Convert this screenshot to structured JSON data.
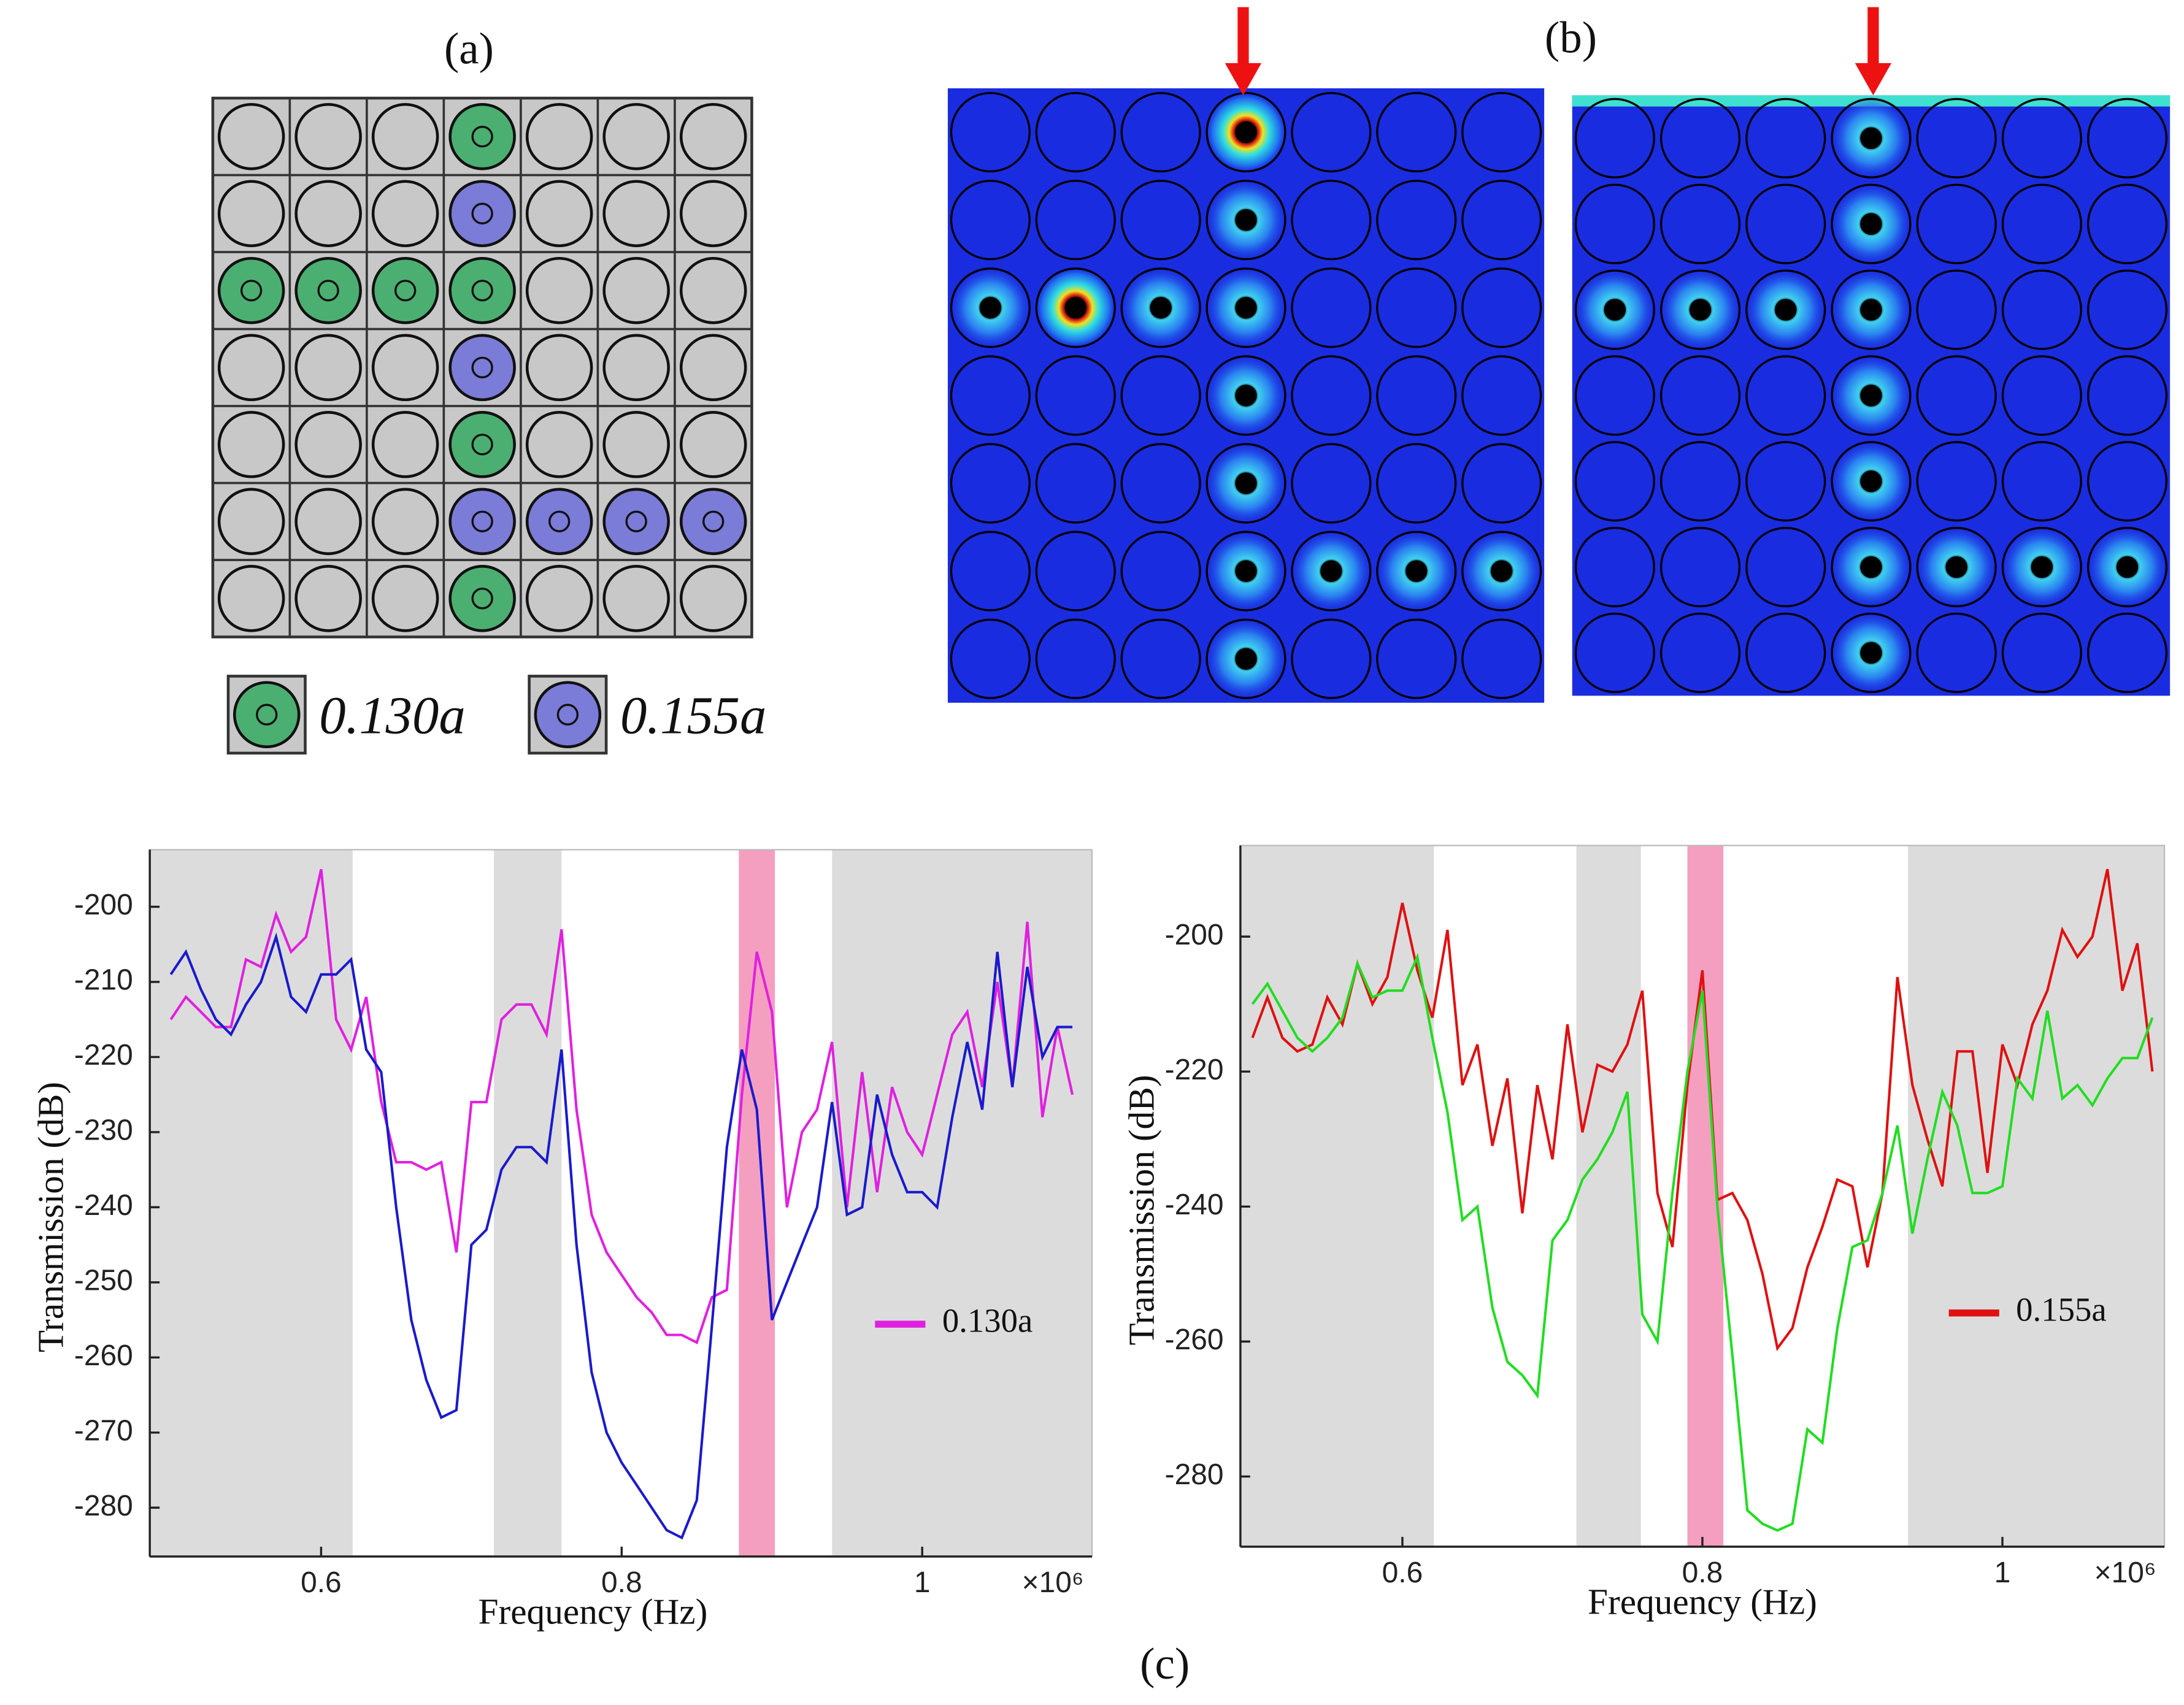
{
  "panel_labels": {
    "a": "(a)",
    "b": "(b)",
    "c": "(c)"
  },
  "material_legend": [
    {
      "label": "0.130a",
      "color": "#4caf72"
    },
    {
      "label": "0.155a",
      "color": "#7b7bd8"
    }
  ],
  "chart_data": [
    {
      "type": "line",
      "x_label": "Frequency (Hz)",
      "y_label": "Transmission (dB)",
      "x_multiplier": "×10⁶",
      "xlim": [
        0.486,
        1.113
      ],
      "xticks": [
        0.6,
        0.8,
        1
      ],
      "ylim": [
        -286.5,
        -192.4
      ],
      "yticks": [
        -280,
        -270,
        -260,
        -250,
        -240,
        -230,
        -220,
        -210,
        -200
      ],
      "shaded_regions": [
        {
          "xlim": [
            0.486,
            0.621
          ],
          "color": "#dcdcdc"
        },
        {
          "xlim": [
            0.715,
            0.76
          ],
          "color": "#dcdcdc"
        },
        {
          "xlim": [
            0.878,
            0.902
          ],
          "color": "#f59fc0"
        },
        {
          "xlim": [
            0.94,
            1.113
          ],
          "color": "#dcdcdc"
        }
      ],
      "x": [
        0.5,
        0.51,
        0.52,
        0.53,
        0.54,
        0.55,
        0.56,
        0.57,
        0.58,
        0.59,
        0.6,
        0.61,
        0.62,
        0.63,
        0.64,
        0.65,
        0.66,
        0.67,
        0.68,
        0.69,
        0.7,
        0.71,
        0.72,
        0.73,
        0.74,
        0.75,
        0.76,
        0.77,
        0.78,
        0.79,
        0.8,
        0.81,
        0.82,
        0.83,
        0.84,
        0.85,
        0.86,
        0.87,
        0.88,
        0.89,
        0.9,
        0.91,
        0.92,
        0.93,
        0.94,
        0.95,
        0.96,
        0.97,
        0.98,
        0.99,
        1,
        1.01,
        1.02,
        1.03,
        1.04,
        1.05,
        1.06,
        1.07,
        1.08,
        1.09,
        1.1
      ],
      "series": [
        {
          "name": "0.130a",
          "color": "#e020e0",
          "values": [
            -215,
            -212,
            -214,
            -216,
            -216,
            -207,
            -208,
            -201,
            -206,
            -204,
            -195,
            -215,
            -219,
            -212,
            -226,
            -234,
            -234,
            -235,
            -234,
            -246,
            -226,
            -226,
            -215,
            -213,
            -213,
            -217,
            -203,
            -227,
            -241,
            -246,
            -249,
            -252,
            -254,
            -257,
            -257,
            -258,
            -252,
            -251,
            -225,
            -206,
            -214,
            -240,
            -230,
            -227,
            -218,
            -240,
            -222,
            -238,
            -224,
            -230,
            -233,
            -225,
            -217,
            -214,
            -224,
            -210,
            -224,
            -202,
            -228,
            -216,
            -225
          ]
        },
        {
          "color": "#1a1acc",
          "values": [
            -209,
            -206,
            -211,
            -215,
            -217,
            -213,
            -210,
            -204,
            -212,
            -214,
            -209,
            -209,
            -207,
            -219,
            -222,
            -240,
            -255,
            -263,
            -268,
            -267,
            -245,
            -243,
            -235,
            -232,
            -232,
            -234,
            -219,
            -245,
            -262,
            -270,
            -274,
            -277,
            -280,
            -283,
            -284,
            -279,
            -256,
            -232,
            -219,
            -227,
            -255,
            -250,
            -245,
            -240,
            -226,
            -241,
            -240,
            -225,
            -233,
            -238,
            -238,
            -240,
            -228,
            -218,
            -227,
            -206,
            -224,
            -208,
            -220,
            -216,
            -216
          ]
        }
      ]
    },
    {
      "type": "line",
      "x_label": "Frequency (Hz)",
      "y_label": "Transmission (dB)",
      "x_multiplier": "×10⁶",
      "xlim": [
        0.492,
        1.108
      ],
      "xticks": [
        0.6,
        0.8,
        1
      ],
      "ylim": [
        -290.4,
        -186.5
      ],
      "yticks": [
        -280,
        -260,
        -240,
        -220,
        -200
      ],
      "shaded_regions": [
        {
          "xlim": [
            0.492,
            0.621
          ],
          "color": "#dcdcdc"
        },
        {
          "xlim": [
            0.716,
            0.759
          ],
          "color": "#dcdcdc"
        },
        {
          "xlim": [
            0.79,
            0.814
          ],
          "color": "#f59fc0"
        },
        {
          "xlim": [
            0.937,
            1.108
          ],
          "color": "#dcdcdc"
        }
      ],
      "x": [
        0.5,
        0.51,
        0.52,
        0.53,
        0.54,
        0.55,
        0.56,
        0.57,
        0.58,
        0.59,
        0.6,
        0.61,
        0.62,
        0.63,
        0.64,
        0.65,
        0.66,
        0.67,
        0.68,
        0.69,
        0.7,
        0.71,
        0.72,
        0.73,
        0.74,
        0.75,
        0.76,
        0.77,
        0.78,
        0.79,
        0.8,
        0.81,
        0.82,
        0.83,
        0.84,
        0.85,
        0.86,
        0.87,
        0.88,
        0.89,
        0.9,
        0.91,
        0.92,
        0.93,
        0.94,
        0.95,
        0.96,
        0.97,
        0.98,
        0.99,
        1,
        1.01,
        1.02,
        1.03,
        1.04,
        1.05,
        1.06,
        1.07,
        1.08,
        1.09,
        1.1
      ],
      "series": [
        {
          "name": "0.155a",
          "color": "#e01010",
          "values": [
            -215,
            -209,
            -215,
            -217,
            -216,
            -209,
            -213,
            -204,
            -210,
            -206,
            -195,
            -205,
            -212,
            -199,
            -222,
            -216,
            -231,
            -221,
            -241,
            -222,
            -233,
            -213,
            -229,
            -219,
            -220,
            -216,
            -208,
            -238,
            -246,
            -222,
            -205,
            -239,
            -238,
            -242,
            -250,
            -261,
            -258,
            -249,
            -243,
            -236,
            -237,
            -249,
            -238,
            -206,
            -222,
            -230,
            -237,
            -217,
            -217,
            -235,
            -216,
            -222,
            -213,
            -208,
            -199,
            -203,
            -200,
            -190,
            -208,
            -201,
            -220
          ]
        },
        {
          "color": "#22dd22",
          "values": [
            -210,
            -207,
            -211,
            -215,
            -217,
            -215,
            -212,
            -204,
            -209,
            -208,
            -208,
            -203,
            -215,
            -226,
            -242,
            -240,
            -255,
            -263,
            -265,
            -268,
            -245,
            -242,
            -236,
            -233,
            -229,
            -223,
            -256,
            -260,
            -238,
            -220,
            -208,
            -240,
            -262,
            -285,
            -287,
            -288,
            -287,
            -273,
            -275,
            -258,
            -246,
            -245,
            -238,
            -228,
            -244,
            -233,
            -223,
            -228,
            -238,
            -238,
            -237,
            -221,
            -224,
            -211,
            -224,
            -222,
            -225,
            -221,
            -218,
            -218,
            -212
          ]
        }
      ]
    }
  ]
}
